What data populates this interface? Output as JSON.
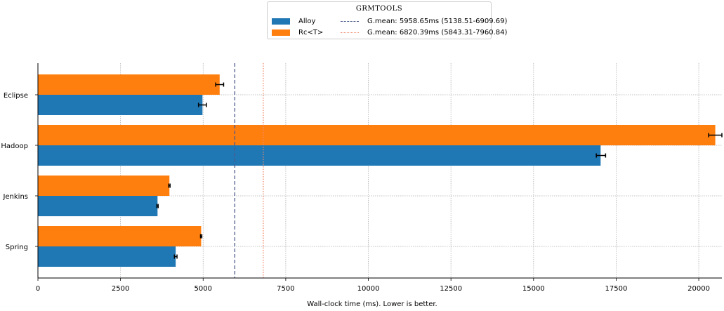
{
  "chart_data": {
    "type": "bar",
    "orientation": "horizontal",
    "title": "",
    "xlabel": "Wall-clock time (ms). Lower is better.",
    "ylabel": "",
    "xlim": [
      0,
      20700
    ],
    "xticks": [
      0,
      2500,
      5000,
      7500,
      10000,
      12500,
      15000,
      17500,
      20000
    ],
    "grid": true,
    "legend_title": "GRMTOOLS",
    "legend_placement": "top-center",
    "categories": [
      "Eclipse",
      "Hadoop",
      "Jenkins",
      "Spring"
    ],
    "series": [
      {
        "name": "Alloy",
        "color": "#1f77b4",
        "values": [
          4980,
          17030,
          3620,
          4170
        ],
        "error": [
          [
            4860,
            5100
          ],
          [
            16900,
            17180
          ],
          [
            3600,
            3640
          ],
          [
            4130,
            4210
          ]
        ]
      },
      {
        "name": "Rc<T>",
        "color": "#ff7f0e",
        "values": [
          5500,
          20500,
          3980,
          4940
        ],
        "error": [
          [
            5380,
            5620
          ],
          [
            20300,
            20700
          ],
          [
            3960,
            4000
          ],
          [
            4920,
            4960
          ]
        ]
      }
    ],
    "reference_lines": [
      {
        "label": "G.mean:  5958.65ms (5138.51-6909.69)",
        "value": 5958.65,
        "style": "dashed",
        "color": "#4c5b8c"
      },
      {
        "label": "G.mean:  6820.39ms (5843.31-7960.84)",
        "value": 6820.39,
        "style": "dotted",
        "color": "#f08a6a"
      }
    ]
  }
}
